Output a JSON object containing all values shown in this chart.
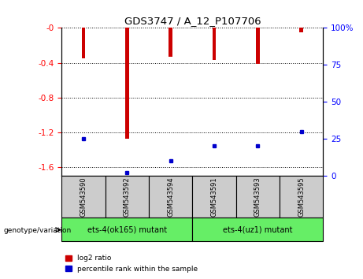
{
  "title": "GDS3747 / A_12_P107706",
  "samples": [
    "GSM543590",
    "GSM543592",
    "GSM543594",
    "GSM543591",
    "GSM543593",
    "GSM543595"
  ],
  "log2_ratios": [
    -0.35,
    -1.27,
    -0.33,
    -0.37,
    -0.41,
    -0.05
  ],
  "percentile_ranks": [
    25,
    2,
    10,
    20,
    20,
    30
  ],
  "bar_color": "#cc0000",
  "pct_color": "#0000cc",
  "ylim_left": [
    -1.7,
    0.0
  ],
  "ylim_right": [
    0,
    100
  ],
  "yticks_left": [
    0.0,
    -0.4,
    -0.8,
    -1.2,
    -1.6
  ],
  "yticks_right": [
    0,
    25,
    50,
    75,
    100
  ],
  "groups": [
    {
      "label": "ets-4(ok165) mutant",
      "color": "#66ee66",
      "start": 0,
      "end": 3
    },
    {
      "label": "ets-4(uz1) mutant",
      "color": "#66ee66",
      "start": 3,
      "end": 6
    }
  ],
  "genotype_label": "genotype/variation",
  "legend_items": [
    {
      "label": "log2 ratio",
      "color": "#cc0000"
    },
    {
      "label": "percentile rank within the sample",
      "color": "#0000cc"
    }
  ],
  "plot_bg": "#ffffff",
  "tick_label_bg": "#cccccc",
  "grid_style": "dotted",
  "bar_width": 0.08
}
